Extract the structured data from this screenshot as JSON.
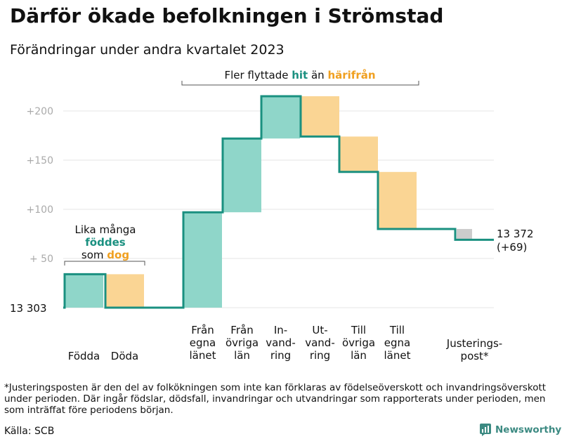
{
  "title": "Därför ökade befolkningen i Strömstad",
  "subtitle": "Förändringar under andra kvartalet 2023",
  "colors": {
    "inflow": "#8fd6c9",
    "outflow": "#fad594",
    "adjust": "#cccccc",
    "line": "#1a9080",
    "hit": "#1a9080",
    "harifran": "#f0a020",
    "gridline": "#e6e6e6",
    "axis": "#999999"
  },
  "chart_data": {
    "type": "waterfall",
    "base_label": "13  303",
    "base_value": 13303,
    "ylim": [
      0,
      225
    ],
    "yticks": [
      {
        "value": 50,
        "label": "+  50"
      },
      {
        "value": 100,
        "label": "+100"
      },
      {
        "value": 150,
        "label": "+150"
      },
      {
        "value": 200,
        "label": "+200"
      }
    ],
    "steps": [
      {
        "category": [
          "Födda"
        ],
        "start": 0,
        "end": 34,
        "kind": "inflow"
      },
      {
        "category": [
          "Döda"
        ],
        "start": 34,
        "end": 0,
        "kind": "outflow"
      },
      {
        "category": [
          "Från",
          "egna",
          "länet"
        ],
        "start": 0,
        "end": 97,
        "kind": "inflow"
      },
      {
        "category": [
          "Från",
          "övriga",
          "län"
        ],
        "start": 97,
        "end": 172,
        "kind": "inflow"
      },
      {
        "category": [
          "In-",
          "vand-",
          "ring"
        ],
        "start": 172,
        "end": 215,
        "kind": "inflow"
      },
      {
        "category": [
          "Ut-",
          "vand-",
          "ring"
        ],
        "start": 215,
        "end": 174,
        "kind": "outflow"
      },
      {
        "category": [
          "Till",
          "övriga",
          "län"
        ],
        "start": 174,
        "end": 138,
        "kind": "outflow"
      },
      {
        "category": [
          "Till",
          "egna",
          "länet"
        ],
        "start": 138,
        "end": 80,
        "kind": "outflow"
      },
      {
        "category": [
          "Justerings-",
          "post*"
        ],
        "start": 80,
        "end": 69,
        "kind": "adjust"
      }
    ],
    "end_label": "13 372",
    "end_change": "(+69)",
    "end_value": 13372
  },
  "annotations": {
    "migration": {
      "prefix": "Fler flyttade ",
      "hit": "hit",
      "middle": " än ",
      "harifran": "härifrån"
    },
    "births": {
      "line1": "Lika många",
      "line2": "föddes",
      "line3_prefix": "som ",
      "line3_dog": "dog"
    }
  },
  "footnote": "*Justeringsposten är den del av folkökningen som inte kan förklaras av födelseöverskott och invandringsöverskott under perioden. Där ingår födslar, dödsfall, invandringar och utvandringar som rapporterats under perioden, men som inträffat före periodens början.",
  "source": "Källa: SCB",
  "logo": {
    "text": "Newsworthy"
  }
}
